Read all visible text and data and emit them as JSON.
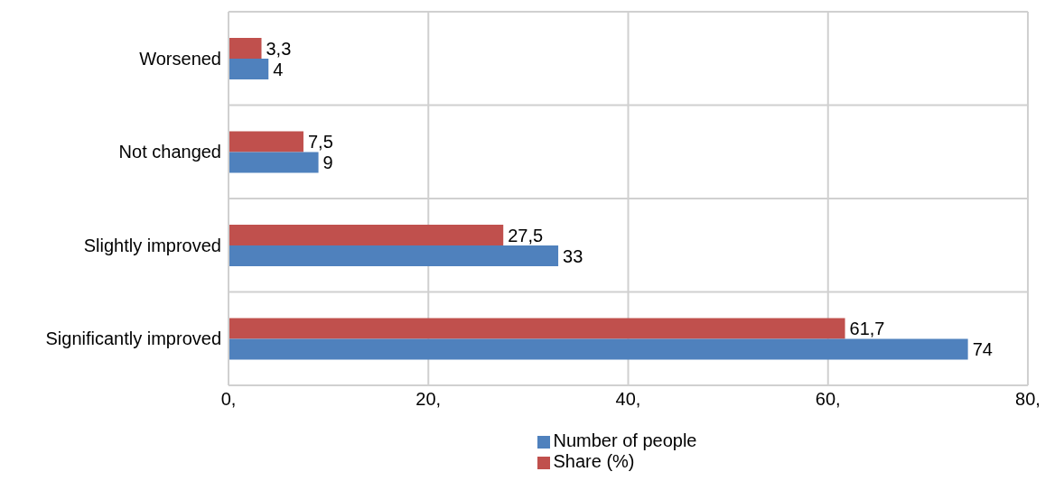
{
  "chart_data": {
    "type": "bar",
    "orientation": "horizontal",
    "categories": [
      "Worsened",
      "Not changed",
      "Slightly improved",
      "Significantly improved"
    ],
    "series": [
      {
        "name": "Share (%)",
        "color": "#c0504d",
        "values": [
          3.3,
          7.5,
          27.5,
          61.7
        ],
        "value_labels": [
          "3,3",
          "7,5",
          "27,5",
          "61,7"
        ]
      },
      {
        "name": "Number of people",
        "color": "#4f81bd",
        "values": [
          4,
          9,
          33,
          74
        ],
        "value_labels": [
          "4",
          "9",
          "33",
          "74"
        ]
      }
    ],
    "xlim": [
      0,
      80
    ],
    "xticks": [
      {
        "value": 0,
        "label": "0,"
      },
      {
        "value": 20,
        "label": "20,"
      },
      {
        "value": 40,
        "label": "40,"
      },
      {
        "value": 60,
        "label": "60,"
      },
      {
        "value": 80,
        "label": "80,"
      }
    ],
    "grid": true,
    "legend": "bottom"
  }
}
